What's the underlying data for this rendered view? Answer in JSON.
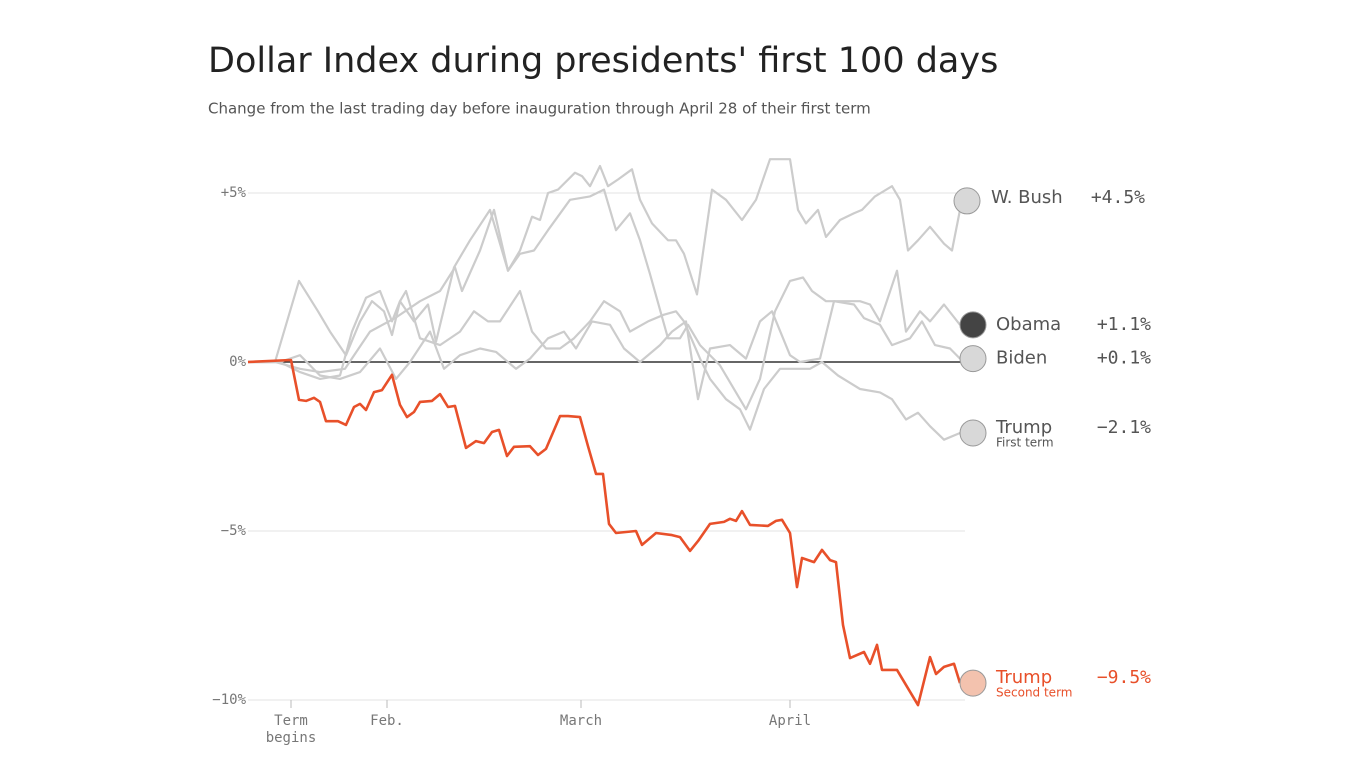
{
  "chart_data": {
    "type": "line",
    "title": "Dollar Index during presidents' first 100 days",
    "subtitle": "Change from the last trading day before inauguration through April 28 of their first term",
    "xlim": [
      0,
      72
    ],
    "xticks": [
      {
        "value": 4.3,
        "label": "Term begins"
      },
      {
        "value": 13.9,
        "label": "Feb."
      },
      {
        "value": 33.3,
        "label": "March"
      },
      {
        "value": 54.2,
        "label": "April"
      }
    ],
    "ylim": [
      -10.5,
      6.5
    ],
    "yticks": [
      {
        "value": 5,
        "label": "+5%"
      },
      {
        "value": 0,
        "label": "0%"
      },
      {
        "value": -5,
        "label": "−5%"
      },
      {
        "value": -10,
        "label": "−10%"
      }
    ],
    "grid": true,
    "series": [
      {
        "name": "W. Bush",
        "color": "#cccccc",
        "end_label": "+4.5%",
        "x": [
          0,
          2.7,
          5.2,
          7.2,
          9.7,
          12.2,
          14.7,
          17.2,
          19.2,
          20.7,
          21.4,
          23.2,
          24.6,
          26,
          27.2,
          28.4,
          29.2,
          30,
          31,
          32.7,
          33.4,
          34.2,
          35.2,
          36,
          37,
          38.4,
          39.2,
          40.4,
          42,
          42.8,
          43.6,
          44.9,
          46.4,
          47.8,
          49.4,
          50.8,
          52.2,
          54.2,
          55,
          55.8,
          57,
          57.8,
          59.2,
          60.6,
          61.4,
          62.7,
          64.4,
          65.2,
          66,
          67,
          68.2,
          69.6,
          70.4,
          71.2
        ],
        "values": [
          0,
          0,
          -0.2,
          -0.3,
          -0.2,
          0.9,
          1.3,
          1.8,
          2.1,
          2.8,
          2.1,
          3.3,
          4.5,
          2.7,
          3.3,
          4.3,
          4.2,
          5,
          5.1,
          5.6,
          5.5,
          5.2,
          5.8,
          5.2,
          5.4,
          5.7,
          4.8,
          4.1,
          3.6,
          3.6,
          3.2,
          2,
          5.1,
          4.8,
          4.2,
          4.8,
          6,
          6,
          4.5,
          4.1,
          4.5,
          3.7,
          4.2,
          4.4,
          4.5,
          4.9,
          5.2,
          4.8,
          3.3,
          3.6,
          4,
          3.5,
          3.3,
          4.5
        ]
      },
      {
        "name": "Obama",
        "color": "#cccccc",
        "end_label": "+1.1%",
        "x": [
          0,
          2.7,
          5.1,
          7,
          8.2,
          9.8,
          11.2,
          12.4,
          13.6,
          14.4,
          15.2,
          16.6,
          18,
          18.8,
          20.6,
          22.2,
          24.2,
          26,
          27.2,
          28.6,
          30,
          32.2,
          34.2,
          35.6,
          36.8,
          38.2,
          39.2,
          40.2,
          42,
          43.2,
          44,
          45.2,
          47.2,
          49.8,
          51.2,
          52.7,
          54.2,
          55.5,
          56.4,
          57.8,
          59.2,
          61.2,
          62.2,
          63.2,
          64.9,
          65.8,
          67.2,
          68.2,
          69.6,
          71.2
        ],
        "values": [
          0,
          0,
          2.4,
          1.5,
          0.9,
          0.2,
          1.2,
          1.8,
          1.5,
          0.8,
          1.8,
          1.2,
          1.7,
          0.6,
          2.8,
          3.6,
          4.5,
          2.7,
          3.2,
          3.3,
          3.9,
          4.8,
          4.9,
          5.1,
          3.9,
          4.4,
          3.6,
          2.6,
          0.7,
          0.7,
          1.1,
          0.5,
          -0.1,
          -1.4,
          -0.5,
          1.5,
          2.4,
          2.5,
          2.1,
          1.8,
          1.8,
          1.8,
          1.7,
          1.2,
          2.7,
          0.9,
          1.5,
          1.2,
          1.7,
          1.1
        ]
      },
      {
        "name": "Biden",
        "color": "#cccccc",
        "end_label": "+0.1%",
        "x": [
          0,
          3.2,
          5.2,
          7.2,
          9.2,
          11.2,
          13.2,
          14.8,
          16.2,
          18.2,
          19.6,
          21.2,
          23.2,
          24.8,
          26.8,
          28.2,
          30,
          31.6,
          32.8,
          34.4,
          36.2,
          37.6,
          39.2,
          41.2,
          42.4,
          43.8,
          45,
          46.2,
          48.2,
          49.8,
          51.2,
          52.4,
          54.2,
          55.2,
          57.2,
          58.6,
          60.6,
          61.6,
          63.2,
          64.4,
          66.2,
          67.4,
          68.7,
          70.2,
          71.2
        ],
        "values": [
          0,
          0,
          0.2,
          -0.4,
          -0.5,
          -0.3,
          0.4,
          -0.5,
          0,
          0.9,
          -0.2,
          0.2,
          0.4,
          0.3,
          -0.2,
          0.1,
          0.7,
          0.9,
          0.4,
          1.2,
          1.1,
          0.4,
          0,
          0.5,
          0.9,
          1.2,
          -1.1,
          0.4,
          0.5,
          0.1,
          1.2,
          1.5,
          0.2,
          0,
          0.1,
          1.8,
          1.7,
          1.3,
          1.1,
          0.5,
          0.7,
          1.2,
          0.5,
          0.4,
          0.1
        ]
      },
      {
        "name": "Trump",
        "subtitle": "First term",
        "color": "#cccccc",
        "end_label": "−2.1%",
        "x": [
          0,
          3.2,
          5.2,
          7.2,
          9.2,
          10.4,
          11.8,
          13.2,
          14.4,
          15.2,
          15.8,
          17.2,
          19.2,
          21.2,
          22.6,
          24,
          25.2,
          27.2,
          28.4,
          29.8,
          31.2,
          32.6,
          34.2,
          35.6,
          37.2,
          38.2,
          40,
          41.6,
          42.8,
          43.6,
          45.2,
          46.2,
          47.8,
          49.2,
          50.2,
          51.6,
          53.2,
          54.6,
          56.2,
          57.4,
          59,
          61.2,
          63.2,
          64.4,
          65.8,
          67,
          68.2,
          69.6,
          71.2
        ],
        "values": [
          0,
          0,
          -0.3,
          -0.5,
          -0.4,
          0.9,
          1.9,
          2.1,
          1.2,
          1.8,
          2.1,
          0.7,
          0.5,
          0.9,
          1.5,
          1.2,
          1.2,
          2.1,
          0.9,
          0.4,
          0.4,
          0.7,
          1.2,
          1.8,
          1.5,
          0.9,
          1.2,
          1.4,
          1.5,
          1.2,
          0.1,
          -0.5,
          -1.1,
          -1.4,
          -2,
          -0.8,
          -0.2,
          -0.2,
          -0.2,
          0,
          -0.4,
          -0.8,
          -0.9,
          -1.1,
          -1.7,
          -1.5,
          -1.9,
          -2.3,
          -2.1
        ]
      },
      {
        "name": "Trump",
        "subtitle": "Second term",
        "color": "#e8502a",
        "end_label": "−9.5%",
        "x": [
          0,
          4.3,
          5.1,
          5.8,
          6.6,
          7.2,
          7.8,
          9,
          9.8,
          10.6,
          11.2,
          11.8,
          12.6,
          13.4,
          14.4,
          15.2,
          15.9,
          16.6,
          17.2,
          18.4,
          19.2,
          20,
          20.7,
          21.8,
          22.8,
          23.6,
          24.4,
          25.1,
          25.9,
          26.6,
          28.2,
          29,
          29.8,
          31.2,
          32,
          33.2,
          34,
          34.8,
          35.5,
          36.1,
          36.8,
          38.8,
          39.4,
          40.8,
          42.4,
          43.2,
          44.2,
          45,
          46.2,
          47.6,
          48.2,
          48.8,
          49.4,
          50.2,
          52,
          52.8,
          53.4,
          54.2,
          54.9,
          55.4,
          56.6,
          57.4,
          58.2,
          58.8,
          59.5,
          60.2,
          61.6,
          62.2,
          62.9,
          63.4,
          64.9,
          67,
          68.2,
          68.8,
          69.6,
          70.6,
          71.2
        ],
        "values": [
          0,
          0.06,
          -1.12,
          -1.15,
          -1.06,
          -1.18,
          -1.75,
          -1.75,
          -1.86,
          -1.33,
          -1.24,
          -1.42,
          -0.89,
          -0.83,
          -0.38,
          -1.27,
          -1.63,
          -1.48,
          -1.18,
          -1.15,
          -0.95,
          -1.33,
          -1.3,
          -2.54,
          -2.34,
          -2.4,
          -2.07,
          -2.01,
          -2.78,
          -2.51,
          -2.49,
          -2.75,
          -2.57,
          -1.6,
          -1.6,
          -1.63,
          -2.49,
          -3.31,
          -3.31,
          -4.79,
          -5.06,
          -5,
          -5.41,
          -5.06,
          -5.12,
          -5.18,
          -5.59,
          -5.3,
          -4.79,
          -4.73,
          -4.64,
          -4.7,
          -4.41,
          -4.82,
          -4.85,
          -4.7,
          -4.67,
          -5.06,
          -6.66,
          -5.8,
          -5.92,
          -5.56,
          -5.86,
          -5.92,
          -7.78,
          -8.76,
          -8.58,
          -8.93,
          -8.37,
          -9.11,
          -9.11,
          -10.15,
          -8.73,
          -9.23,
          -9.02,
          -8.93,
          -9.5
        ]
      }
    ]
  }
}
